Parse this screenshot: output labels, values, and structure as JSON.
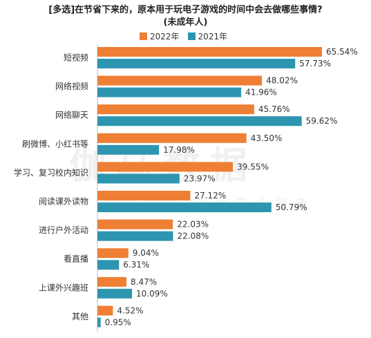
{
  "chart_data": {
    "type": "bar",
    "orientation": "horizontal",
    "title": "[多选]在节省下来的，原本用于玩电子游戏的时间中会去做哪些事情?",
    "subtitle": "(未成年人)",
    "categories": [
      "短视频",
      "网络视频",
      "网络聊天",
      "刷微博、小红书等",
      "学习、复习校内知识",
      "阅读课外读物",
      "进行户外活动",
      "看直播",
      "上课外兴趣班",
      "其他"
    ],
    "series": [
      {
        "name": "2022年",
        "color": "#ee7f34",
        "values": [
          65.54,
          48.02,
          45.76,
          43.5,
          39.55,
          27.12,
          22.03,
          9.04,
          8.47,
          4.52
        ],
        "labels": [
          "65.54%",
          "48.02%",
          "45.76%",
          "43.50%",
          "39.55%",
          "27.12%",
          "22.03%",
          "9.04%",
          "8.47%",
          "4.52%"
        ]
      },
      {
        "name": "2021年",
        "color": "#2e95b0",
        "values": [
          57.73,
          41.96,
          59.62,
          17.98,
          23.97,
          50.79,
          22.08,
          6.31,
          10.09,
          0.95
        ],
        "labels": [
          "57.73%",
          "41.96%",
          "59.62%",
          "17.98%",
          "23.97%",
          "50.79%",
          "22.08%",
          "6.31%",
          "10.09%",
          "0.95%"
        ]
      }
    ],
    "xlim": [
      0,
      70
    ],
    "legend_position": "top",
    "grid": false
  },
  "watermark": {
    "main": "伽马数据",
    "sub": "伽马数据·游戏产业报告"
  }
}
